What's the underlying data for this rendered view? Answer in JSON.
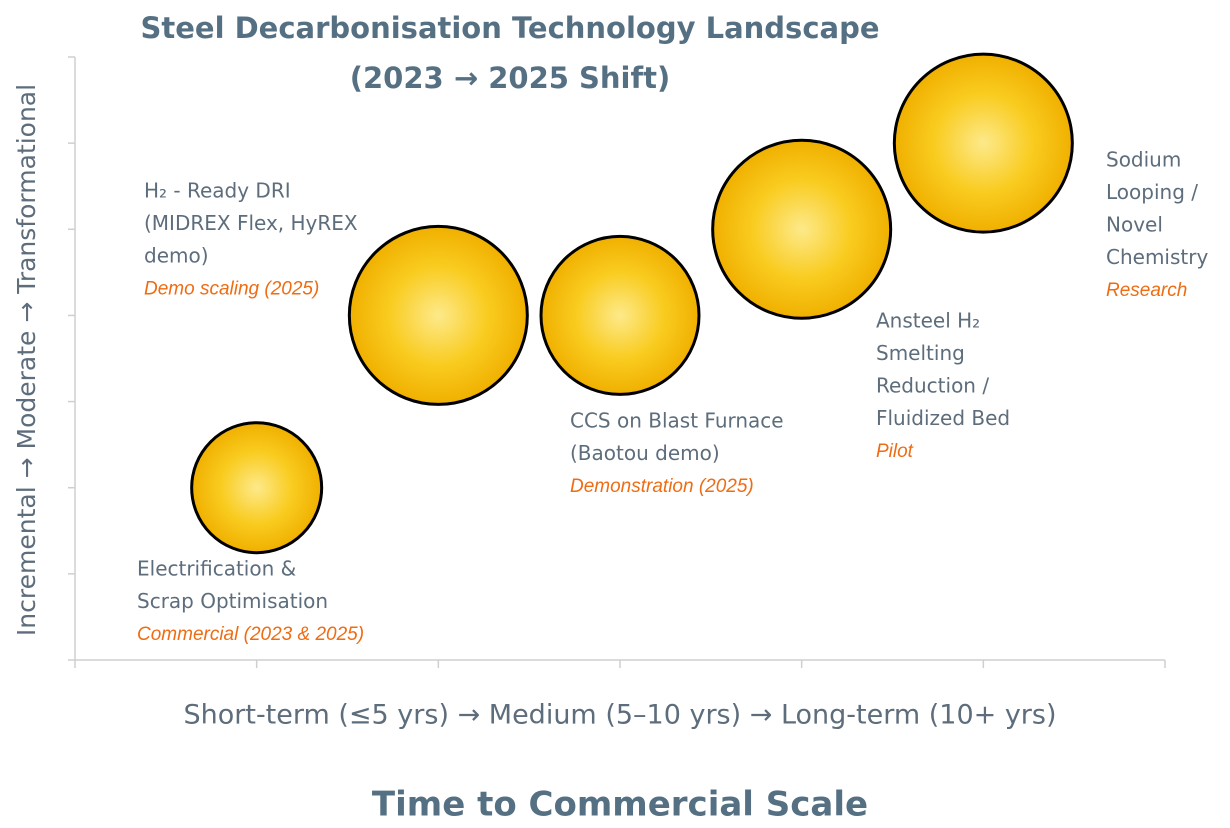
{
  "chart_data": {
    "type": "scatter",
    "title": [
      "Steel Decarbonisation Technology Landscape",
      "(2023 → 2025 Shift)"
    ],
    "x_label": "Short-term (≤5 yrs)  → Medium (5–10 yrs)  →  Long-term (10+ yrs)",
    "x_title": "Time to Commercial Scale",
    "y_label": "Incremental → Moderate → Transformational",
    "x": [
      1,
      2,
      3,
      4,
      5
    ],
    "y": [
      2,
      4,
      4,
      5,
      6
    ],
    "sizes": [
      65,
      89,
      79,
      89,
      89
    ],
    "labels": [
      [
        "Electrification &",
        "Scrap Optimisation"
      ],
      [
        "H₂ - Ready DRI",
        "(MIDREX Flex, HyREX",
        "demo)"
      ],
      [
        "CCS on Blast Furnace",
        "(Baotou demo)"
      ],
      [
        "Ansteel H₂",
        "Smelting",
        "Reduction /",
        "Fluidized Bed"
      ],
      [
        "Sodium",
        "Looping /",
        "Novel",
        "Chemistry"
      ]
    ],
    "statuses": [
      "Commercial (2023 & 2025)",
      "Demo scaling (2025)",
      "Demonstration (2025)",
      "Pilot",
      "Research"
    ],
    "color": "#f4b800",
    "xlim": [
      0,
      6
    ],
    "xticks": [
      0,
      1,
      2,
      3,
      4,
      5,
      6
    ],
    "ylim": [
      0,
      7
    ],
    "yticks": [
      0,
      1,
      2,
      3,
      4,
      5,
      6,
      7
    ]
  }
}
